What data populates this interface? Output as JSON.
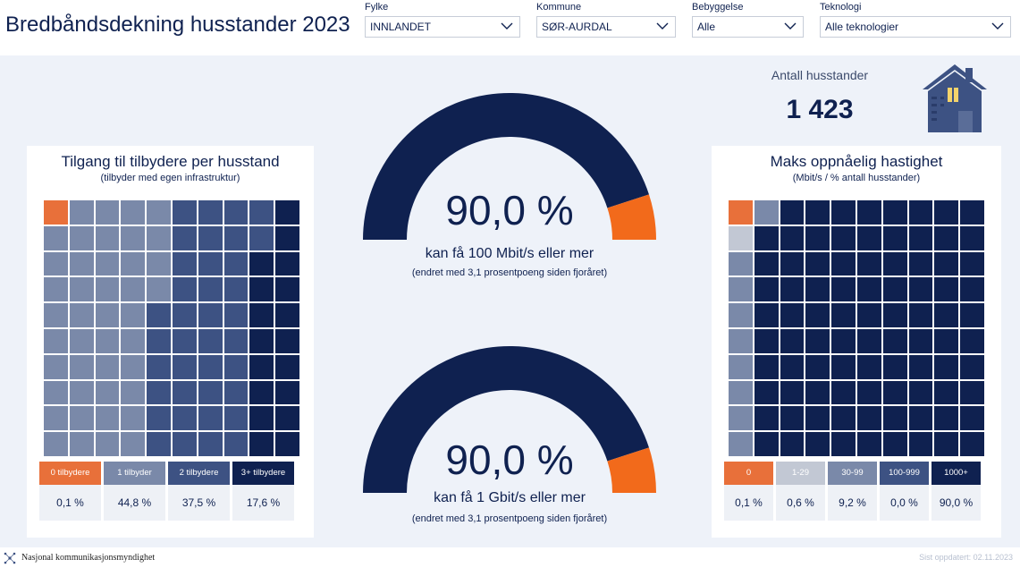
{
  "page": {
    "title": "Bredbåndsdekning husstander 2023"
  },
  "filters": [
    {
      "label": "Fylke",
      "value": "INNLANDET"
    },
    {
      "label": "Kommune",
      "value": "SØR-AURDAL"
    },
    {
      "label": "Bebyggelse",
      "value": "Alle"
    },
    {
      "label": "Teknologi",
      "value": "Alle teknologier"
    }
  ],
  "households": {
    "label": "Antall husstander",
    "value": "1 423",
    "icon": "house-icon"
  },
  "providers_panel": {
    "title": "Tilgang til tilbydere per husstand",
    "subtitle": "(tilbyder med egen infrastruktur)",
    "categories": [
      {
        "label": "0 tilbydere",
        "value": "0,1 %",
        "percent": 0.1,
        "color": "#e8703a"
      },
      {
        "label": "1 tilbyder",
        "value": "44,8 %",
        "percent": 44.8,
        "color": "#7a89a9"
      },
      {
        "label": "2 tilbydere",
        "value": "37,5 %",
        "percent": 37.5,
        "color": "#3d5283"
      },
      {
        "label": "3+ tilbydere",
        "value": "17,6 %",
        "percent": 17.6,
        "color": "#0f2150"
      }
    ]
  },
  "speed_panel": {
    "title": "Maks oppnåelig hastighet",
    "subtitle": "(Mbit/s / % antall husstander)",
    "categories": [
      {
        "label": "0",
        "value": "0,1 %",
        "percent": 0.1,
        "color": "#e8703a"
      },
      {
        "label": "1-29",
        "value": "0,6 %",
        "percent": 0.6,
        "color": "#c2c8d4"
      },
      {
        "label": "30-99",
        "value": "9,2 %",
        "percent": 9.2,
        "color": "#7a89a9"
      },
      {
        "label": "100-999",
        "value": "0,0 %",
        "percent": 0.0,
        "color": "#3d5283"
      },
      {
        "label": "1000+",
        "value": "90,0 %",
        "percent": 90.0,
        "color": "#0f2150"
      }
    ]
  },
  "gauges": [
    {
      "value_text": "90,0 %",
      "percent": 90.0,
      "label": "kan få 100 Mbit/s eller mer",
      "note": "(endret med 3,1 prosentpoeng siden fjoråret)",
      "fill_color": "#0f2150",
      "rest_color": "#f26a1b"
    },
    {
      "value_text": "90,0 %",
      "percent": 90.0,
      "label": "kan få 1 Gbit/s eller mer",
      "note": "(endret med 3,1 prosentpoeng siden fjoråret)",
      "fill_color": "#0f2150",
      "rest_color": "#f26a1b"
    }
  ],
  "footer": {
    "organization": "Nasjonal kommunikasjonsmyndighet",
    "updated": "Sist oppdatert: 02.11.2023"
  }
}
